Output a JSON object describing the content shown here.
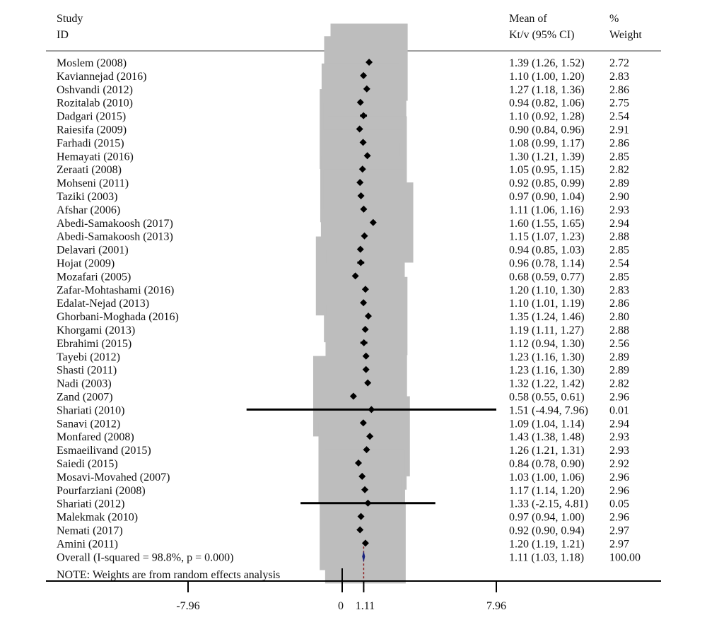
{
  "header": {
    "study_line1": "Study",
    "study_line2": "ID",
    "effect_line1": "Mean of",
    "effect_line2": "Kt/v (95% CI)",
    "weight_line1": "%",
    "weight_line2": "Weight"
  },
  "note": "NOTE: Weights are from random effects analysis",
  "chart_data": {
    "type": "forest",
    "effect_measure": "Mean of Kt/v (95% CI)",
    "x_ticks": [
      {
        "value": -7.96,
        "label": "-7.96"
      },
      {
        "value": 0,
        "label": "0"
      },
      {
        "value": 1.11,
        "label": "1.11"
      },
      {
        "value": 7.96,
        "label": "7.96"
      }
    ],
    "xlim": [
      -7.96,
      7.96
    ],
    "null_line": 0,
    "studies": [
      {
        "id": "Moslem (2008)",
        "est": 1.39,
        "lo": 1.26,
        "hi": 1.52,
        "label": "1.39 (1.26, 1.52)",
        "weight": 2.72,
        "weight_label": "2.72"
      },
      {
        "id": "Kaviannejad (2016)",
        "est": 1.1,
        "lo": 1.0,
        "hi": 1.2,
        "label": "1.10 (1.00, 1.20)",
        "weight": 2.83,
        "weight_label": "2.83"
      },
      {
        "id": "Oshvandi (2012)",
        "est": 1.27,
        "lo": 1.18,
        "hi": 1.36,
        "label": "1.27 (1.18, 1.36)",
        "weight": 2.86,
        "weight_label": "2.86"
      },
      {
        "id": "Rozitalab (2010)",
        "est": 0.94,
        "lo": 0.82,
        "hi": 1.06,
        "label": "0.94 (0.82, 1.06)",
        "weight": 2.75,
        "weight_label": "2.75"
      },
      {
        "id": "Dadgari (2015)",
        "est": 1.1,
        "lo": 0.92,
        "hi": 1.28,
        "label": "1.10 (0.92, 1.28)",
        "weight": 2.54,
        "weight_label": "2.54"
      },
      {
        "id": "Raiesifa (2009)",
        "est": 0.9,
        "lo": 0.84,
        "hi": 0.96,
        "label": "0.90 (0.84, 0.96)",
        "weight": 2.91,
        "weight_label": "2.91"
      },
      {
        "id": "Farhadi (2015)",
        "est": 1.08,
        "lo": 0.99,
        "hi": 1.17,
        "label": "1.08 (0.99, 1.17)",
        "weight": 2.86,
        "weight_label": "2.86"
      },
      {
        "id": "Hemayati (2016)",
        "est": 1.3,
        "lo": 1.21,
        "hi": 1.39,
        "label": "1.30 (1.21, 1.39)",
        "weight": 2.85,
        "weight_label": "2.85"
      },
      {
        "id": "Zeraati (2008)",
        "est": 1.05,
        "lo": 0.95,
        "hi": 1.15,
        "label": "1.05 (0.95, 1.15)",
        "weight": 2.82,
        "weight_label": "2.82"
      },
      {
        "id": "Mohseni (2011)",
        "est": 0.92,
        "lo": 0.85,
        "hi": 0.99,
        "label": "0.92 (0.85, 0.99)",
        "weight": 2.89,
        "weight_label": "2.89"
      },
      {
        "id": "Taziki (2003)",
        "est": 0.97,
        "lo": 0.9,
        "hi": 1.04,
        "label": "0.97 (0.90, 1.04)",
        "weight": 2.9,
        "weight_label": "2.90"
      },
      {
        "id": "Afshar (2006)",
        "est": 1.11,
        "lo": 1.06,
        "hi": 1.16,
        "label": "1.11 (1.06, 1.16)",
        "weight": 2.93,
        "weight_label": "2.93"
      },
      {
        "id": "Abedi-Samakoosh (2017)",
        "est": 1.6,
        "lo": 1.55,
        "hi": 1.65,
        "label": "1.60 (1.55, 1.65)",
        "weight": 2.94,
        "weight_label": "2.94"
      },
      {
        "id": "Abedi-Samakoosh (2013)",
        "est": 1.15,
        "lo": 1.07,
        "hi": 1.23,
        "label": "1.15 (1.07, 1.23)",
        "weight": 2.88,
        "weight_label": "2.88"
      },
      {
        "id": "Delavari (2001)",
        "est": 0.94,
        "lo": 0.85,
        "hi": 1.03,
        "label": "0.94 (0.85, 1.03)",
        "weight": 2.85,
        "weight_label": "2.85"
      },
      {
        "id": "Hojat (2009)",
        "est": 0.96,
        "lo": 0.78,
        "hi": 1.14,
        "label": "0.96 (0.78, 1.14)",
        "weight": 2.54,
        "weight_label": "2.54"
      },
      {
        "id": "Mozafari (2005)",
        "est": 0.68,
        "lo": 0.59,
        "hi": 0.77,
        "label": "0.68 (0.59, 0.77)",
        "weight": 2.85,
        "weight_label": "2.85"
      },
      {
        "id": "Zafar-Mohtashami (2016)",
        "est": 1.2,
        "lo": 1.1,
        "hi": 1.3,
        "label": "1.20 (1.10, 1.30)",
        "weight": 2.83,
        "weight_label": "2.83"
      },
      {
        "id": "Edalat-Nejad (2013)",
        "est": 1.1,
        "lo": 1.01,
        "hi": 1.19,
        "label": "1.10 (1.01, 1.19)",
        "weight": 2.86,
        "weight_label": "2.86"
      },
      {
        "id": "Ghorbani-Moghada (2016)",
        "est": 1.35,
        "lo": 1.24,
        "hi": 1.46,
        "label": "1.35 (1.24, 1.46)",
        "weight": 2.8,
        "weight_label": "2.80"
      },
      {
        "id": "Khorgami (2013)",
        "est": 1.19,
        "lo": 1.11,
        "hi": 1.27,
        "label": "1.19 (1.11, 1.27)",
        "weight": 2.88,
        "weight_label": "2.88"
      },
      {
        "id": "Ebrahimi (2015)",
        "est": 1.12,
        "lo": 0.94,
        "hi": 1.3,
        "label": "1.12 (0.94, 1.30)",
        "weight": 2.56,
        "weight_label": "2.56"
      },
      {
        "id": "Tayebi (2012)",
        "est": 1.23,
        "lo": 1.16,
        "hi": 1.3,
        "label": "1.23 (1.16, 1.30)",
        "weight": 2.89,
        "weight_label": "2.89"
      },
      {
        "id": "Shasti (2011)",
        "est": 1.23,
        "lo": 1.16,
        "hi": 1.3,
        "label": "1.23 (1.16, 1.30)",
        "weight": 2.89,
        "weight_label": "2.89"
      },
      {
        "id": "Nadi (2003)",
        "est": 1.32,
        "lo": 1.22,
        "hi": 1.42,
        "label": "1.32 (1.22, 1.42)",
        "weight": 2.82,
        "weight_label": "2.82"
      },
      {
        "id": "Zand (2007)",
        "est": 0.58,
        "lo": 0.55,
        "hi": 0.61,
        "label": "0.58 (0.55, 0.61)",
        "weight": 2.96,
        "weight_label": "2.96"
      },
      {
        "id": "Shariati (2010)",
        "est": 1.51,
        "lo": -4.94,
        "hi": 7.96,
        "label": "1.51 (-4.94, 7.96)",
        "weight": 0.01,
        "weight_label": "0.01"
      },
      {
        "id": "Sanavi (2012)",
        "est": 1.09,
        "lo": 1.04,
        "hi": 1.14,
        "label": "1.09 (1.04, 1.14)",
        "weight": 2.94,
        "weight_label": "2.94"
      },
      {
        "id": "Monfared (2008)",
        "est": 1.43,
        "lo": 1.38,
        "hi": 1.48,
        "label": "1.43 (1.38, 1.48)",
        "weight": 2.93,
        "weight_label": "2.93"
      },
      {
        "id": "Esmaeilivand (2015)",
        "est": 1.26,
        "lo": 1.21,
        "hi": 1.31,
        "label": "1.26 (1.21, 1.31)",
        "weight": 2.93,
        "weight_label": "2.93"
      },
      {
        "id": "Saiedi (2015)",
        "est": 0.84,
        "lo": 0.78,
        "hi": 0.9,
        "label": "0.84 (0.78, 0.90)",
        "weight": 2.92,
        "weight_label": "2.92"
      },
      {
        "id": "Mosavi-Movahed (2007)",
        "est": 1.03,
        "lo": 1.0,
        "hi": 1.06,
        "label": "1.03 (1.00, 1.06)",
        "weight": 2.96,
        "weight_label": "2.96"
      },
      {
        "id": "Pourfarziani (2008)",
        "est": 1.17,
        "lo": 1.14,
        "hi": 1.2,
        "label": "1.17 (1.14, 1.20)",
        "weight": 2.96,
        "weight_label": "2.96"
      },
      {
        "id": "Shariati (2012)",
        "est": 1.33,
        "lo": -2.15,
        "hi": 4.81,
        "label": "1.33 (-2.15, 4.81)",
        "weight": 0.05,
        "weight_label": "0.05"
      },
      {
        "id": "Malekmak (2010)",
        "est": 0.97,
        "lo": 0.94,
        "hi": 1.0,
        "label": "0.97 (0.94, 1.00)",
        "weight": 2.96,
        "weight_label": "2.96"
      },
      {
        "id": "Nemati (2017)",
        "est": 0.92,
        "lo": 0.9,
        "hi": 0.94,
        "label": "0.92 (0.90, 0.94)",
        "weight": 2.97,
        "weight_label": "2.97"
      },
      {
        "id": "Amini (2011)",
        "est": 1.2,
        "lo": 1.19,
        "hi": 1.21,
        "label": "1.20 (1.19, 1.21)",
        "weight": 2.97,
        "weight_label": "2.97"
      }
    ],
    "overall": {
      "id": "Overall  (I-squared = 98.8%, p = 0.000)",
      "est": 1.11,
      "lo": 1.03,
      "hi": 1.18,
      "label": "1.11 (1.03, 1.18)",
      "weight": 100.0,
      "weight_label": "100.00"
    },
    "colors": {
      "weight_box": "#bdbdbd",
      "point": "#000000",
      "ci_line": "#000000",
      "overall_diamond": "#1a237e",
      "overall_line": "#8b1a1a",
      "axis": "#000000",
      "rule": "#9e9e9e"
    }
  }
}
